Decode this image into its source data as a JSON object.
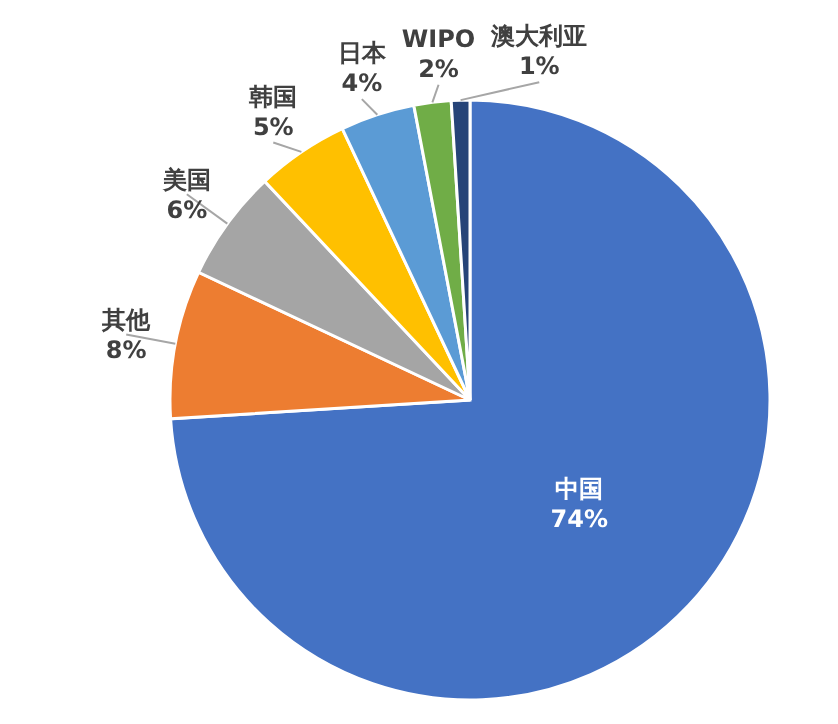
{
  "chart_data": {
    "type": "pie",
    "categories": [
      "中国",
      "其他",
      "美国",
      "韩国",
      "日本",
      "WIPO",
      "澳大利亚"
    ],
    "values": [
      74,
      8,
      6,
      5,
      4,
      2,
      1
    ],
    "value_labels": [
      "74%",
      "8%",
      "6%",
      "5%",
      "4%",
      "2%",
      "1%"
    ],
    "colors": [
      "#4472c4",
      "#ed7d31",
      "#a5a5a5",
      "#ffc000",
      "#5b9bd5",
      "#70ad47",
      "#264478"
    ]
  }
}
